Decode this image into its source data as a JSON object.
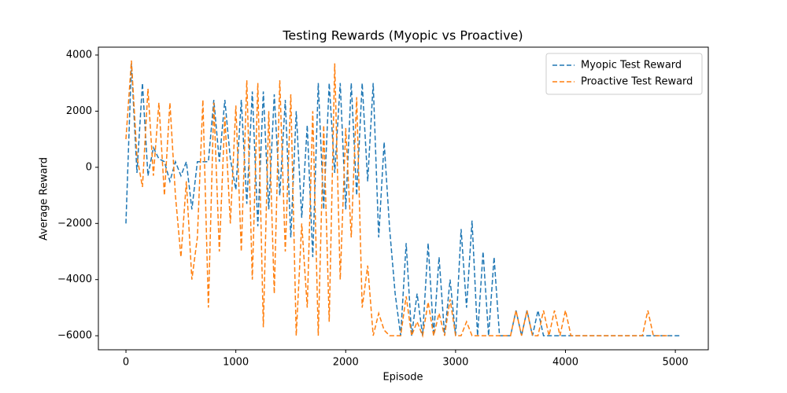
{
  "chart_data": {
    "type": "line",
    "title": "Testing Rewards (Myopic vs Proactive)",
    "x_label": "Episode",
    "y_label": "Average Reward",
    "x": [
      0,
      50,
      100,
      150,
      200,
      250,
      300,
      350,
      400,
      450,
      500,
      550,
      600,
      650,
      700,
      750,
      800,
      850,
      900,
      950,
      1000,
      1050,
      1100,
      1150,
      1200,
      1250,
      1300,
      1350,
      1400,
      1450,
      1500,
      1550,
      1600,
      1650,
      1700,
      1750,
      1800,
      1850,
      1900,
      1950,
      2000,
      2050,
      2100,
      2150,
      2200,
      2250,
      2300,
      2350,
      2400,
      2450,
      2500,
      2550,
      2600,
      2650,
      2700,
      2750,
      2800,
      2850,
      2900,
      2950,
      3000,
      3050,
      3100,
      3150,
      3200,
      3250,
      3300,
      3350,
      3400,
      3450,
      3500,
      3550,
      3600,
      3650,
      3700,
      3750,
      3800,
      3850,
      3900,
      3950,
      4000,
      4050,
      4100,
      4150,
      4200,
      4250,
      4300,
      4350,
      4400,
      4450,
      4500,
      4550,
      4600,
      4650,
      4700,
      4750,
      4800,
      4850,
      4900,
      4950,
      5000,
      5050
    ],
    "series": [
      {
        "name": "Myopic Test Reward",
        "color": "#1f77b4",
        "values": [
          -2000,
          3700,
          -200,
          3000,
          -300,
          700,
          300,
          200,
          -500,
          200,
          -300,
          200,
          -1500,
          200,
          200,
          200,
          2400,
          200,
          2400,
          300,
          -800,
          2400,
          -1300,
          2700,
          -2100,
          2700,
          -1500,
          2600,
          -1000,
          2400,
          -2500,
          2000,
          -1800,
          1500,
          -3200,
          3000,
          -1500,
          3000,
          -200,
          3000,
          -1500,
          3000,
          -1000,
          3000,
          -500,
          3000,
          -2500,
          900,
          -2200,
          -4500,
          -6000,
          -2700,
          -6000,
          -4500,
          -6000,
          -2700,
          -6000,
          -3200,
          -6000,
          -4000,
          -6000,
          -2200,
          -5000,
          -1900,
          -6000,
          -3000,
          -6000,
          -3200,
          -6000,
          -6000,
          -6000,
          -5100,
          -6000,
          -5100,
          -6000,
          -5100,
          -6000,
          -6000,
          -6000,
          -6000,
          -6000,
          -6000,
          -6000,
          -6000,
          -6000,
          -6000,
          -6000,
          -6000,
          -6000,
          -6000,
          -6000,
          -6000,
          -6000,
          -6000,
          -6000,
          -6000,
          -6000,
          -6000,
          -6000,
          -6000,
          -6000,
          -6000
        ]
      },
      {
        "name": "Proactive Test Reward",
        "color": "#ff7f0e",
        "values": [
          1000,
          3800,
          400,
          -700,
          2800,
          -300,
          2300,
          -1000,
          2300,
          -1000,
          -3200,
          -500,
          -4000,
          -2500,
          2400,
          -5000,
          2300,
          -3000,
          1800,
          -2000,
          2200,
          -3000,
          3100,
          -4000,
          3000,
          -5700,
          2000,
          -4500,
          3100,
          -3000,
          2600,
          -6000,
          -2000,
          -5000,
          2000,
          -6000,
          1500,
          -5500,
          3700,
          -4000,
          1400,
          -2500,
          2500,
          -5000,
          -3500,
          -6000,
          -5200,
          -5800,
          -6000,
          -6000,
          -6000,
          -4600,
          -6000,
          -5500,
          -6000,
          -4800,
          -6000,
          -5200,
          -6000,
          -4700,
          -6000,
          -6000,
          -5500,
          -6000,
          -6000,
          -6000,
          -6000,
          -6000,
          -6000,
          -6000,
          -6000,
          -5100,
          -6000,
          -5100,
          -6000,
          -6000,
          -5100,
          -6000,
          -5100,
          -6000,
          -5100,
          -6000,
          -6000,
          -6000,
          -6000,
          -6000,
          -6000,
          -6000,
          -6000,
          -6000,
          -6000,
          -6000,
          -6000,
          -6000,
          -6000,
          -5100,
          -6000,
          -6000,
          -6000,
          -6000,
          null,
          null
        ]
      }
    ],
    "xlim": [
      -251,
      5300
    ],
    "ylim": [
      -6500,
      4280
    ],
    "xticks": [
      0,
      1000,
      2000,
      3000,
      4000,
      5000
    ],
    "yticks": [
      {
        "value": -6000,
        "label": "−6000"
      },
      {
        "value": -4000,
        "label": "−4000"
      },
      {
        "value": -2000,
        "label": "−2000"
      },
      0,
      2000,
      4000
    ],
    "line_style": "dashed",
    "legend": "upper right",
    "grid": false
  }
}
